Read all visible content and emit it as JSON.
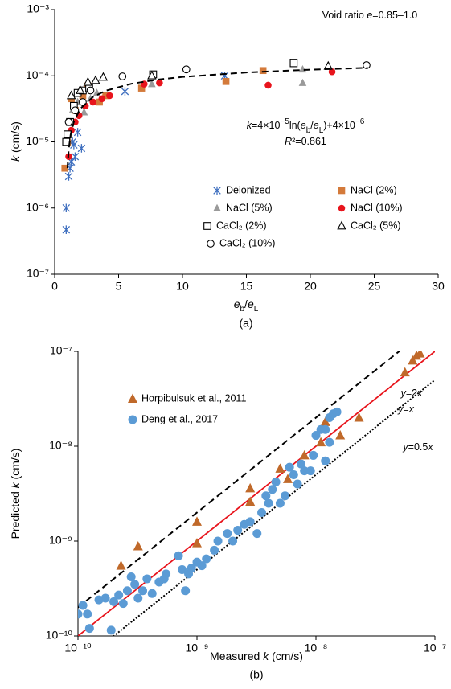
{
  "chart_data": [
    {
      "type": "scatter",
      "title": "(a)",
      "xlabel": [
        "e",
        "b",
        "/",
        "e",
        "L"
      ],
      "ylabel": [
        "k",
        " (cm/s)"
      ],
      "xlim": [
        0,
        30
      ],
      "ylim": [
        1e-07,
        0.001
      ],
      "ylog": true,
      "xlog": false,
      "xticks": [
        0,
        5,
        10,
        15,
        20,
        25,
        30
      ],
      "yticks": [
        {
          "value": 1e-07,
          "label": "10⁻⁷"
        },
        {
          "value": 1e-06,
          "label": "10⁻⁶"
        },
        {
          "value": 1e-05,
          "label": "10⁻⁵"
        },
        {
          "value": 0.0001,
          "label": "10⁻⁴"
        },
        {
          "value": 0.001,
          "label": "10⁻³"
        }
      ],
      "annotations": [
        [
          "Void ratio ",
          "e",
          "=0.85–1.0"
        ],
        [
          "k",
          "=4×10",
          "−5",
          "ln(",
          "e",
          "b",
          "/",
          "e",
          "L",
          ")+4×10",
          "−6"
        ],
        [
          "R",
          "²=0.861"
        ]
      ],
      "series": [
        {
          "name": "Deionized",
          "color": "#3f6fbf",
          "marker": "asterisk",
          "x": [
            0.9,
            0.9,
            1.1,
            1.2,
            1.3,
            1.4,
            1.6,
            1.8,
            2.1,
            1.5,
            5.5,
            13.3
          ],
          "values": [
            4.7e-07,
            1e-06,
            3e-06,
            4e-06,
            5e-06,
            1e-05,
            6e-06,
            1.4e-05,
            8e-06,
            9e-06,
            5.8e-05,
            0.0001
          ]
        },
        {
          "name": "NaCl (2%)",
          "color": "#d47a3a",
          "marker": "square",
          "filled": true,
          "x": [
            0.8,
            1.0,
            1.3,
            1.6,
            2.2,
            2.6,
            3.5,
            4.0,
            6.8,
            13.4,
            16.3
          ],
          "values": [
            4e-06,
            1e-05,
            4.5e-05,
            3e-05,
            5e-05,
            7e-05,
            4e-05,
            5e-05,
            6.5e-05,
            8.2e-05,
            0.00012
          ]
        },
        {
          "name": "NaCl (5%)",
          "color": "#9a9a9a",
          "marker": "triangle",
          "filled": true,
          "x": [
            1.0,
            1.4,
            1.8,
            2.3,
            2.8,
            3.3,
            7.6,
            19.4,
            19.4
          ],
          "values": [
            1.2e-05,
            3e-05,
            4e-05,
            2.8e-05,
            4.5e-05,
            5.5e-05,
            7.5e-05,
            7.8e-05,
            0.000125
          ]
        },
        {
          "name": "NaCl (10%)",
          "color": "#e8141c",
          "marker": "circle",
          "filled": true,
          "x": [
            1.1,
            1.3,
            1.6,
            1.9,
            2.4,
            3.0,
            3.7,
            4.3,
            7.0,
            8.2,
            16.7,
            21.7
          ],
          "values": [
            6e-06,
            1.5e-05,
            2e-05,
            2.5e-05,
            3.5e-05,
            4e-05,
            4.5e-05,
            5e-05,
            7.5e-05,
            7.8e-05,
            7.2e-05,
            0.000115
          ]
        },
        {
          "name": "CaCl₂ (2%)",
          "color": "#000000",
          "marker": "square",
          "filled": false,
          "x": [
            0.9,
            1.0,
            1.2,
            1.5,
            1.8,
            2.2,
            2.7,
            7.7,
            18.7
          ],
          "values": [
            1e-05,
            1.3e-05,
            2e-05,
            3.5e-05,
            5.5e-05,
            6e-05,
            6.5e-05,
            0.000105,
            0.000155
          ]
        },
        {
          "name": "CaCl₂ (5%)",
          "color": "#000000",
          "marker": "triangle",
          "filled": false,
          "x": [
            1.3,
            2.0,
            2.6,
            3.2,
            3.8,
            7.6,
            21.4
          ],
          "values": [
            5e-05,
            6e-05,
            8e-05,
            8.5e-05,
            9.5e-05,
            0.0001,
            0.00014
          ]
        },
        {
          "name": "CaCl₂ (10%)",
          "color": "#000000",
          "marker": "circle",
          "filled": false,
          "x": [
            1.1,
            1.6,
            2.2,
            2.8,
            5.3,
            10.3,
            24.4
          ],
          "values": [
            2e-05,
            3e-05,
            4e-05,
            6e-05,
            9.8e-05,
            0.000125,
            0.000145
          ]
        }
      ],
      "fit": {
        "color": "#000000",
        "x": [
          1,
          1.1,
          1.25,
          1.5,
          2,
          3,
          4,
          6,
          8,
          10,
          15,
          20,
          24.5
        ],
        "values": [
          4e-06,
          7.8e-06,
          1.29e-05,
          2.02e-05,
          3.17e-05,
          4.79e-05,
          5.95e-05,
          7.57e-05,
          8.72e-05,
          9.61e-05,
          0.0001123,
          0.0001238,
          0.000132
        ]
      }
    },
    {
      "type": "scatter",
      "title": "(b)",
      "xlabel": [
        "Measured ",
        "k",
        " (cm/s)"
      ],
      "ylabel": [
        "Predicted ",
        "k",
        " (cm/s)"
      ],
      "xlim": [
        1e-10,
        1e-07
      ],
      "ylim": [
        1e-10,
        1e-07
      ],
      "xlog": true,
      "ylog": true,
      "xticks": [
        {
          "value": 1e-10,
          "label": "10⁻¹⁰"
        },
        {
          "value": 1e-09,
          "label": "10⁻⁹"
        },
        {
          "value": 1e-08,
          "label": "10⁻⁸"
        },
        {
          "value": 1e-07,
          "label": "10⁻⁷"
        }
      ],
      "yticks": [
        {
          "value": 1e-10,
          "label": "10⁻¹⁰"
        },
        {
          "value": 1e-09,
          "label": "10⁻⁹"
        },
        {
          "value": 1e-08,
          "label": "10⁻⁸"
        },
        {
          "value": 1e-07,
          "label": "10⁻⁷"
        }
      ],
      "ref_lines": [
        {
          "label": [
            "y",
            "=2",
            "x"
          ],
          "factor": 2,
          "color": "#000000",
          "dash": "dashed"
        },
        {
          "label": [
            "y",
            "=",
            "x"
          ],
          "factor": 1,
          "color": "#e8141c",
          "dash": "solid"
        },
        {
          "label": [
            "y",
            "=0.5",
            "x"
          ],
          "factor": 0.5,
          "color": "#000000",
          "dash": "dotted"
        }
      ],
      "series": [
        {
          "name": "Horpibulsuk et al., 2011",
          "color": "#c0692a",
          "marker": "triangle",
          "filled": true,
          "x": [
            2.3e-10,
            3.2e-10,
            1e-09,
            1e-09,
            2.8e-09,
            2.8e-09,
            5.8e-09,
            8e-09,
            1.1e-08,
            1.2e-08,
            2.3e-08,
            5.6e-08,
            6.5e-08,
            7e-08,
            7.5e-08,
            1.6e-08,
            5e-09
          ],
          "values": [
            5.5e-10,
            8.8e-10,
            1.6e-09,
            9.5e-10,
            3.6e-09,
            2.6e-09,
            4.5e-09,
            8e-09,
            1.1e-08,
            1.8e-08,
            2e-08,
            6e-08,
            8e-08,
            9e-08,
            9.5e-08,
            1.3e-08,
            5.8e-09
          ]
        },
        {
          "name": "Deng et al., 2017",
          "color": "#5b9bd5",
          "marker": "circle",
          "filled": true,
          "x": [
            1e-10,
            1.1e-10,
            1.2e-10,
            1.25e-10,
            1.5e-10,
            1.7e-10,
            1.9e-10,
            2e-10,
            2.2e-10,
            2.4e-10,
            2.6e-10,
            2.8e-10,
            3e-10,
            3.2e-10,
            3.5e-10,
            3.8e-10,
            4.2e-10,
            4.8e-10,
            5.3e-10,
            5.5e-10,
            7e-10,
            7.5e-10,
            8e-10,
            8.5e-10,
            9e-10,
            1e-09,
            1.1e-09,
            1.2e-09,
            1.4e-09,
            1.5e-09,
            1.8e-09,
            2e-09,
            2.2e-09,
            2.5e-09,
            2.8e-09,
            3.2e-09,
            3.5e-09,
            3.8e-09,
            4e-09,
            4.3e-09,
            4.6e-09,
            5e-09,
            5.5e-09,
            6e-09,
            6.5e-09,
            7e-09,
            7.5e-09,
            8e-09,
            9e-09,
            9.5e-09,
            1e-08,
            1.1e-08,
            1.2e-08,
            1.3e-08,
            1.4e-08,
            1.5e-08,
            1.3e-08,
            1.2e-08
          ],
          "values": [
            1.7e-10,
            2.1e-10,
            1.7e-10,
            1.2e-10,
            2.4e-10,
            2.5e-10,
            1.15e-10,
            2.3e-10,
            2.7e-10,
            2.2e-10,
            3e-10,
            4.2e-10,
            3.5e-10,
            2.5e-10,
            3e-10,
            4e-10,
            2.8e-10,
            3.7e-10,
            4e-10,
            4.5e-10,
            7e-10,
            5e-10,
            3e-10,
            4.5e-10,
            5.2e-10,
            6e-10,
            5.5e-10,
            6.5e-10,
            8e-10,
            1e-09,
            1.2e-09,
            1e-09,
            1.3e-09,
            1.5e-09,
            1.6e-09,
            1.2e-09,
            2e-09,
            3e-09,
            2.5e-09,
            3.5e-09,
            4.2e-09,
            2.5e-09,
            3e-09,
            6e-09,
            5e-09,
            4e-09,
            6.5e-09,
            5.5e-09,
            5.5e-09,
            8e-09,
            1.3e-08,
            1.5e-08,
            1.5e-08,
            2e-08,
            2.2e-08,
            2.3e-08,
            1.1e-08,
            7e-09
          ]
        }
      ]
    }
  ]
}
